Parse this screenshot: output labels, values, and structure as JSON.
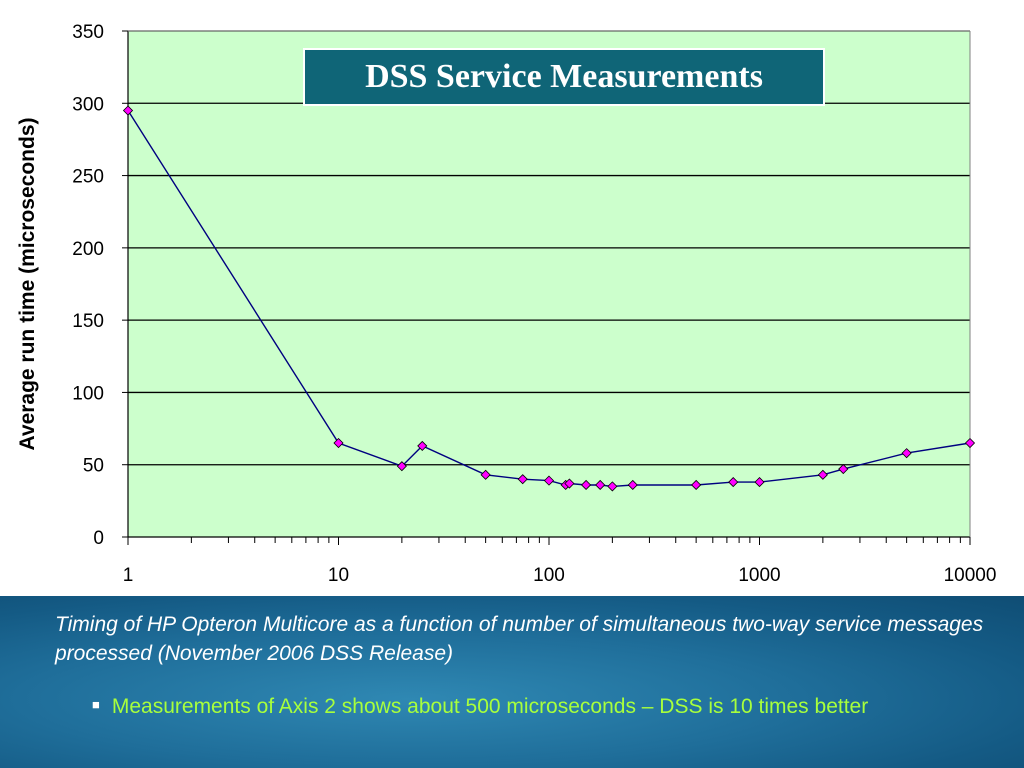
{
  "title": "DSS Service Measurements",
  "caption": "Timing of HP Opteron Multicore as a function of number of simultaneous two-way service messages processed (November 2006 DSS Release)",
  "bullet": "Measurements of Axis 2 shows about 500 microseconds – DSS is 10 times better",
  "colors": {
    "plot_background": "#ccffcc",
    "line": "#000080",
    "marker": "#ff00ff",
    "title_box": "#0f6577",
    "bullet_text": "#a8ff3c",
    "panel": "#1f6e9a"
  },
  "chart_data": {
    "type": "line",
    "title": "DSS Service Measurements",
    "xlabel": "",
    "ylabel": "Average run time (microseconds)",
    "xscale": "log",
    "xlim": [
      1,
      10000
    ],
    "ylim": [
      0,
      350
    ],
    "grid": true,
    "legend": "none",
    "xticks": [
      "1",
      "10",
      "100",
      "1000",
      "10000"
    ],
    "yticks": [
      "0",
      "50",
      "100",
      "150",
      "200",
      "250",
      "300",
      "350"
    ],
    "series": [
      {
        "x": [
          1,
          10,
          20,
          25,
          50,
          75,
          100,
          120,
          125,
          150,
          175,
          200,
          250,
          500,
          750,
          1000,
          2000,
          2500,
          5000,
          10000
        ],
        "y": [
          295,
          65,
          49,
          63,
          43,
          40,
          39,
          36,
          37,
          36,
          36,
          35,
          36,
          36,
          38,
          38,
          43,
          47,
          58,
          65
        ]
      }
    ]
  }
}
